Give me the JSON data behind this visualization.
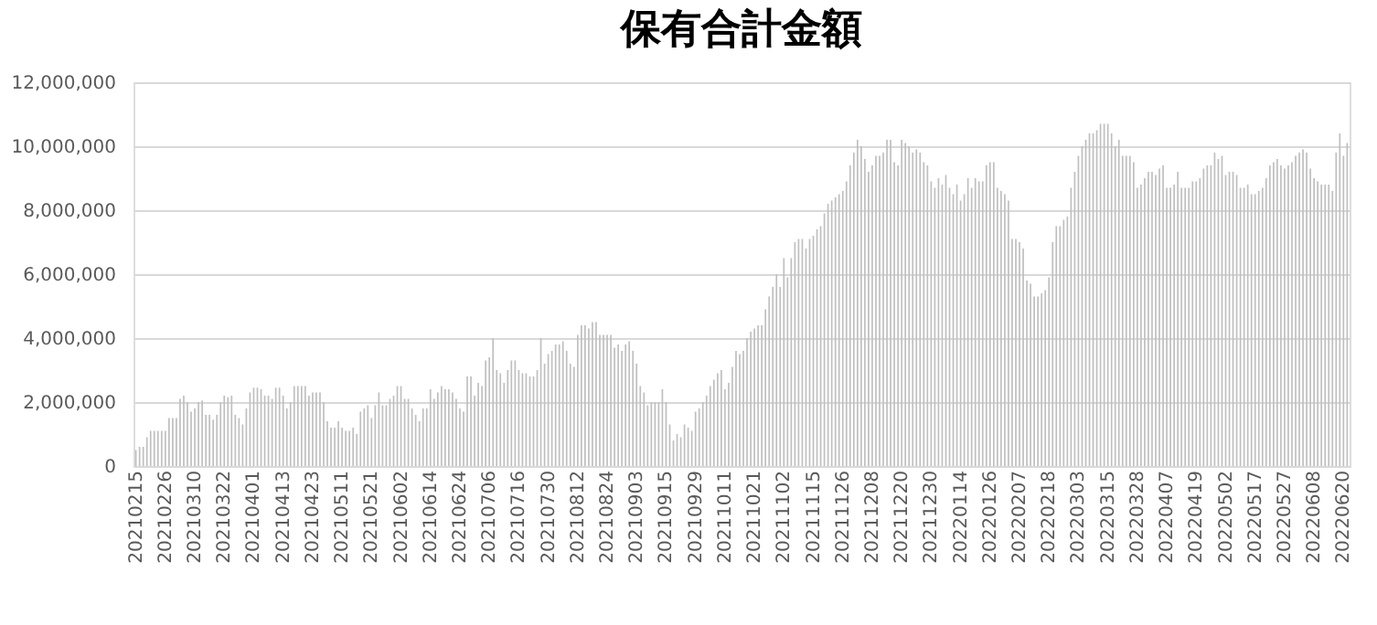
{
  "chart_data": {
    "type": "bar",
    "title": "保有合計金額",
    "color": "#bfbfbf",
    "grid": "y",
    "ylim": [
      0,
      12000000
    ],
    "yticks": [
      {
        "value": 0,
        "label": "0"
      },
      {
        "value": 2000000,
        "label": "2,000,000"
      },
      {
        "value": 4000000,
        "label": "4,000,000"
      },
      {
        "value": 6000000,
        "label": "6,000,000"
      },
      {
        "value": 8000000,
        "label": "8,000,000"
      },
      {
        "value": 10000000,
        "label": "10,000,000"
      },
      {
        "value": 12000000,
        "label": "12,000,000"
      }
    ],
    "categories": [
      "20210215",
      null,
      null,
      null,
      null,
      null,
      null,
      null,
      "20210226",
      null,
      null,
      null,
      null,
      null,
      null,
      null,
      "20210310",
      null,
      null,
      null,
      null,
      null,
      null,
      null,
      "20210322",
      null,
      null,
      null,
      null,
      null,
      null,
      null,
      "20210401",
      null,
      null,
      null,
      null,
      null,
      null,
      null,
      "20210413",
      null,
      null,
      null,
      null,
      null,
      null,
      null,
      "20210423",
      null,
      null,
      null,
      null,
      null,
      null,
      null,
      "20210511",
      null,
      null,
      null,
      null,
      null,
      null,
      null,
      "20210521",
      null,
      null,
      null,
      null,
      null,
      null,
      null,
      "20210602",
      null,
      null,
      null,
      null,
      null,
      null,
      null,
      "20210614",
      null,
      null,
      null,
      null,
      null,
      null,
      null,
      "20210624",
      null,
      null,
      null,
      null,
      null,
      null,
      null,
      "20210706",
      null,
      null,
      null,
      null,
      null,
      null,
      null,
      "20210716",
      null,
      null,
      null,
      null,
      null,
      null,
      null,
      "20210730",
      null,
      null,
      null,
      null,
      null,
      null,
      null,
      "20210812",
      null,
      null,
      null,
      null,
      null,
      null,
      null,
      "20210824",
      null,
      null,
      null,
      null,
      null,
      null,
      null,
      "20210903",
      null,
      null,
      null,
      null,
      null,
      null,
      null,
      "20210915",
      null,
      null,
      null,
      null,
      null,
      null,
      null,
      "20210929",
      null,
      null,
      null,
      null,
      null,
      null,
      null,
      "20211011",
      null,
      null,
      null,
      null,
      null,
      null,
      null,
      "20211021",
      null,
      null,
      null,
      null,
      null,
      null,
      null,
      "20211102",
      null,
      null,
      null,
      null,
      null,
      null,
      null,
      "20211115",
      null,
      null,
      null,
      null,
      null,
      null,
      null,
      "20211126",
      null,
      null,
      null,
      null,
      null,
      null,
      null,
      "20211208",
      null,
      null,
      null,
      null,
      null,
      null,
      null,
      "20211220",
      null,
      null,
      null,
      null,
      null,
      null,
      null,
      "20211230",
      null,
      null,
      null,
      null,
      null,
      null,
      null,
      "20220114",
      null,
      null,
      null,
      null,
      null,
      null,
      null,
      "20220126",
      null,
      null,
      null,
      null,
      null,
      null,
      null,
      "20220207",
      null,
      null,
      null,
      null,
      null,
      null,
      null,
      "20220218",
      null,
      null,
      null,
      null,
      null,
      null,
      null,
      "20220303",
      null,
      null,
      null,
      null,
      null,
      null,
      null,
      "20220315",
      null,
      null,
      null,
      null,
      null,
      null,
      null,
      "20220328",
      null,
      null,
      null,
      null,
      null,
      null,
      null,
      "20220407",
      null,
      null,
      null,
      null,
      null,
      null,
      null,
      "20220419",
      null,
      null,
      null,
      null,
      null,
      null,
      null,
      "20220502",
      null,
      null,
      null,
      null,
      null,
      null,
      null,
      "20220517",
      null,
      null,
      null,
      null,
      null,
      null,
      null,
      "20220527",
      null,
      null,
      null,
      null,
      null,
      null,
      null,
      "20220608",
      null,
      null,
      null,
      null,
      null,
      null,
      null,
      "20220620",
      null
    ],
    "values": [
      500000,
      600000,
      600000,
      900000,
      1100000,
      1100000,
      1100000,
      1100000,
      1100000,
      1500000,
      1500000,
      1500000,
      2100000,
      2200000,
      2000000,
      1700000,
      1800000,
      2000000,
      2050000,
      1600000,
      1600000,
      1450000,
      1600000,
      2000000,
      2200000,
      2150000,
      2200000,
      1600000,
      1500000,
      1300000,
      1800000,
      2300000,
      2450000,
      2450000,
      2400000,
      2200000,
      2200000,
      2100000,
      2450000,
      2450000,
      2200000,
      1800000,
      2000000,
      2500000,
      2500000,
      2500000,
      2500000,
      2200000,
      2300000,
      2300000,
      2300000,
      2000000,
      1400000,
      1200000,
      1200000,
      1400000,
      1200000,
      1100000,
      1100000,
      1200000,
      1000000,
      1700000,
      1800000,
      1900000,
      1500000,
      1900000,
      2300000,
      1900000,
      1900000,
      2100000,
      2200000,
      2500000,
      2500000,
      2100000,
      2100000,
      1800000,
      1600000,
      1400000,
      1800000,
      1800000,
      2400000,
      2100000,
      2300000,
      2500000,
      2400000,
      2400000,
      2300000,
      2100000,
      1800000,
      1700000,
      2800000,
      2800000,
      2200000,
      2600000,
      2500000,
      3300000,
      3400000,
      4000000,
      3000000,
      2900000,
      2600000,
      3000000,
      3300000,
      3300000,
      3000000,
      2900000,
      2900000,
      2800000,
      2800000,
      3000000,
      4000000,
      3200000,
      3500000,
      3600000,
      3800000,
      3800000,
      3900000,
      3600000,
      3200000,
      3100000,
      4100000,
      4400000,
      4400000,
      4300000,
      4500000,
      4500000,
      4100000,
      4100000,
      4100000,
      4100000,
      3700000,
      3800000,
      3600000,
      3800000,
      3900000,
      3600000,
      3200000,
      2500000,
      2300000,
      1900000,
      2000000,
      2000000,
      2000000,
      2400000,
      2000000,
      1300000,
      800000,
      1000000,
      900000,
      1300000,
      1200000,
      1100000,
      1700000,
      1800000,
      2000000,
      2200000,
      2500000,
      2700000,
      2900000,
      3000000,
      2400000,
      2600000,
      3100000,
      3600000,
      3500000,
      3600000,
      4000000,
      4200000,
      4300000,
      4400000,
      4400000,
      4900000,
      5300000,
      5600000,
      6000000,
      5600000,
      6500000,
      5900000,
      6500000,
      7000000,
      7100000,
      7100000,
      6800000,
      7100000,
      7200000,
      7400000,
      7500000,
      7900000,
      8200000,
      8300000,
      8400000,
      8500000,
      8600000,
      8900000,
      9400000,
      9800000,
      10200000,
      10000000,
      9600000,
      9200000,
      9400000,
      9700000,
      9700000,
      9800000,
      10200000,
      10200000,
      9500000,
      9400000,
      10200000,
      10100000,
      10000000,
      9800000,
      9900000,
      9800000,
      9500000,
      9400000,
      8900000,
      8700000,
      9000000,
      8800000,
      9100000,
      8700000,
      8500000,
      8800000,
      8300000,
      8500000,
      9000000,
      8700000,
      9000000,
      8900000,
      8900000,
      9400000,
      9500000,
      9500000,
      8700000,
      8600000,
      8500000,
      8300000,
      7100000,
      7100000,
      7000000,
      6800000,
      5800000,
      5700000,
      5300000,
      5300000,
      5400000,
      5500000,
      5900000,
      7000000,
      7500000,
      7500000,
      7700000,
      7800000,
      8700000,
      9200000,
      9700000,
      10000000,
      10200000,
      10400000,
      10400000,
      10500000,
      10700000,
      10700000,
      10700000,
      10400000,
      10000000,
      10200000,
      9700000,
      9700000,
      9700000,
      9500000,
      8700000,
      8800000,
      9000000,
      9200000,
      9200000,
      9100000,
      9300000,
      9400000,
      8700000,
      8700000,
      8800000,
      9200000,
      8700000,
      8700000,
      8700000,
      8900000,
      8900000,
      9000000,
      9300000,
      9400000,
      9400000,
      9800000,
      9600000,
      9700000,
      9100000,
      9200000,
      9200000,
      9100000,
      8700000,
      8700000,
      8800000,
      8500000,
      8500000,
      8600000,
      8700000,
      9000000,
      9400000,
      9500000,
      9600000,
      9400000,
      9300000,
      9400000,
      9500000,
      9700000,
      9800000,
      9900000,
      9800000,
      9300000,
      9000000,
      8900000,
      8800000,
      8800000,
      8800000,
      8600000,
      9800000,
      10400000,
      9700000,
      10100000
    ]
  }
}
